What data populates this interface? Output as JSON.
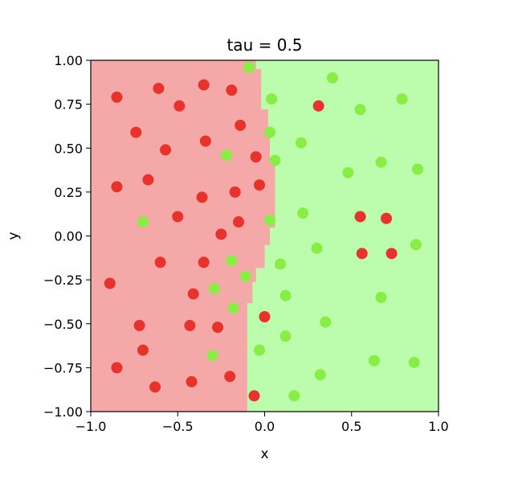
{
  "chart_data": {
    "type": "scatter",
    "title": "tau = 0.5",
    "xlabel": "x",
    "ylabel": "y",
    "xlim": [
      -1.0,
      1.0
    ],
    "ylim": [
      -1.0,
      1.0
    ],
    "x_ticks": [
      "−1.0",
      "−0.5",
      "0.0",
      "0.5",
      "1.0"
    ],
    "y_ticks": [
      "−1.00",
      "−0.75",
      "−0.50",
      "−0.25",
      "0.00",
      "0.25",
      "0.50",
      "0.75",
      "1.00"
    ],
    "grid": false,
    "colors": {
      "red_point": "#e8322b",
      "green_point": "#88ee44",
      "red_region": "#f4a9a8",
      "green_region": "#bbfcad"
    },
    "decision_boundary": [
      {
        "y_from": 0.95,
        "y_to": 1.0,
        "x": -0.05
      },
      {
        "y_from": 0.72,
        "y_to": 0.95,
        "x": -0.02
      },
      {
        "y_from": 0.57,
        "y_to": 0.72,
        "x": 0.02
      },
      {
        "y_from": 0.43,
        "y_to": 0.57,
        "x": 0.03
      },
      {
        "y_from": 0.05,
        "y_to": 0.43,
        "x": 0.06
      },
      {
        "y_from": -0.05,
        "y_to": 0.05,
        "x": 0.03
      },
      {
        "y_from": -0.18,
        "y_to": -0.05,
        "x": 0.0
      },
      {
        "y_from": -0.26,
        "y_to": -0.18,
        "x": -0.05
      },
      {
        "y_from": -0.38,
        "y_to": -0.26,
        "x": -0.07
      },
      {
        "y_from": -1.0,
        "y_to": -0.38,
        "x": -0.1
      }
    ],
    "series": [
      {
        "label": "red",
        "points": [
          [
            -0.85,
            0.79
          ],
          [
            -0.61,
            0.84
          ],
          [
            -0.49,
            0.74
          ],
          [
            -0.35,
            0.86
          ],
          [
            -0.19,
            0.83
          ],
          [
            -0.74,
            0.59
          ],
          [
            -0.57,
            0.49
          ],
          [
            -0.34,
            0.54
          ],
          [
            -0.14,
            0.63
          ],
          [
            -0.05,
            0.45
          ],
          [
            -0.85,
            0.28
          ],
          [
            -0.67,
            0.32
          ],
          [
            -0.36,
            0.22
          ],
          [
            -0.17,
            0.25
          ],
          [
            -0.03,
            0.29
          ],
          [
            -0.5,
            0.11
          ],
          [
            -0.15,
            0.08
          ],
          [
            -0.25,
            0.01
          ],
          [
            -0.6,
            -0.15
          ],
          [
            -0.35,
            -0.15
          ],
          [
            -0.89,
            -0.27
          ],
          [
            -0.41,
            -0.33
          ],
          [
            -0.72,
            -0.51
          ],
          [
            -0.43,
            -0.51
          ],
          [
            -0.27,
            -0.52
          ],
          [
            -0.7,
            -0.65
          ],
          [
            -0.85,
            -0.75
          ],
          [
            -0.63,
            -0.86
          ],
          [
            -0.42,
            -0.83
          ],
          [
            -0.2,
            -0.8
          ],
          [
            -0.06,
            -0.91
          ],
          [
            0.0,
            -0.46
          ],
          [
            0.31,
            0.74
          ],
          [
            0.55,
            0.11
          ],
          [
            0.7,
            0.1
          ],
          [
            0.56,
            -0.1
          ],
          [
            0.73,
            -0.1
          ]
        ]
      },
      {
        "label": "green",
        "points": [
          [
            -0.09,
            0.96
          ],
          [
            0.39,
            0.9
          ],
          [
            0.04,
            0.78
          ],
          [
            0.55,
            0.72
          ],
          [
            0.79,
            0.78
          ],
          [
            0.03,
            0.59
          ],
          [
            0.21,
            0.53
          ],
          [
            -0.22,
            0.46
          ],
          [
            0.06,
            0.43
          ],
          [
            0.48,
            0.36
          ],
          [
            0.67,
            0.42
          ],
          [
            0.88,
            0.38
          ],
          [
            0.22,
            0.13
          ],
          [
            0.03,
            0.09
          ],
          [
            -0.7,
            0.08
          ],
          [
            0.3,
            -0.07
          ],
          [
            0.87,
            -0.05
          ],
          [
            -0.19,
            -0.14
          ],
          [
            0.09,
            -0.16
          ],
          [
            -0.11,
            -0.23
          ],
          [
            -0.29,
            -0.3
          ],
          [
            0.12,
            -0.34
          ],
          [
            0.67,
            -0.35
          ],
          [
            -0.18,
            -0.41
          ],
          [
            0.35,
            -0.49
          ],
          [
            0.12,
            -0.57
          ],
          [
            -0.03,
            -0.65
          ],
          [
            -0.3,
            -0.68
          ],
          [
            0.63,
            -0.71
          ],
          [
            0.86,
            -0.72
          ],
          [
            0.32,
            -0.79
          ],
          [
            0.17,
            -0.91
          ]
        ]
      }
    ]
  }
}
